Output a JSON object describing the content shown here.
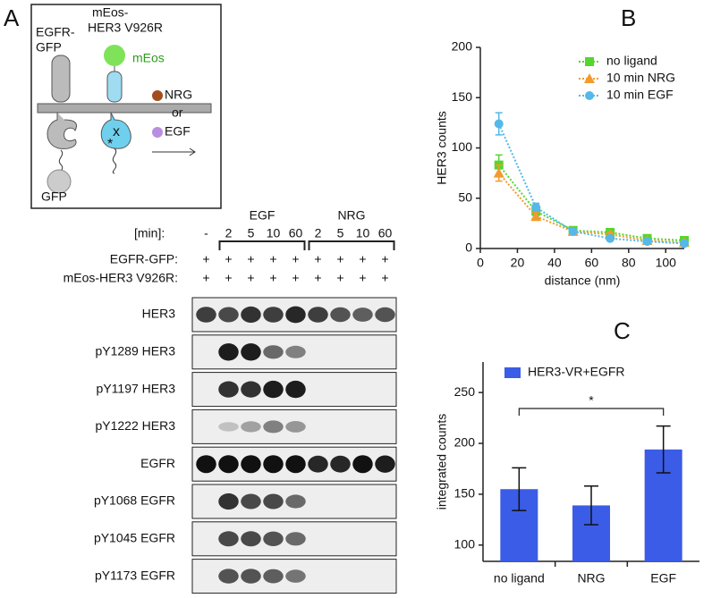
{
  "panel_labels": [
    "A",
    "B",
    "C"
  ],
  "diagram": {
    "egfr_label": [
      "EGFR-",
      "GFP"
    ],
    "her3_label": [
      "mEos-",
      "HER3 V926R"
    ],
    "meos_label": "mEos",
    "gfp_label": "GFP",
    "ligands": [
      "NRG",
      "or",
      "EGF"
    ]
  },
  "blot": {
    "min_label": "[min]:",
    "control": "-",
    "groups": [
      {
        "name": "EGF",
        "times": [
          2,
          5,
          10,
          60
        ]
      },
      {
        "name": "NRG",
        "times": [
          2,
          5,
          10,
          60
        ]
      }
    ],
    "conditions": [
      {
        "label": "EGFR-GFP:",
        "marks": [
          "+",
          "+",
          "+",
          "+",
          "+",
          "+",
          "+",
          "+",
          "+"
        ]
      },
      {
        "label": "mEos-HER3 V926R:",
        "marks": [
          "+",
          "+",
          "+",
          "+",
          "+",
          "+",
          "+",
          "+",
          "+"
        ]
      }
    ],
    "rows": [
      "HER3",
      "pY1289 HER3",
      "pY1197 HER3",
      "pY1222 HER3",
      "EGFR",
      "pY1068 EGFR",
      "pY1045 EGFR",
      "pY1173 EGFR"
    ]
  },
  "chart_data": [
    {
      "type": "line",
      "ylabel": "HER3 counts",
      "xlabel": "distance (nm)",
      "x": [
        10,
        30,
        50,
        70,
        90,
        110
      ],
      "series": [
        {
          "name": "no ligand",
          "color": "#55d62f",
          "marker": "square",
          "values": [
            83,
            37,
            18,
            16,
            10,
            8
          ],
          "errors": [
            10,
            4,
            2,
            2,
            1,
            1
          ]
        },
        {
          "name": "10 min NRG",
          "color": "#f39a2c",
          "marker": "triangle",
          "values": [
            75,
            32,
            17,
            14,
            8,
            6
          ],
          "errors": [
            8,
            4,
            2,
            2,
            1,
            1
          ]
        },
        {
          "name": "10 min EGF",
          "color": "#56b8e8",
          "marker": "circle",
          "values": [
            124,
            41,
            17,
            10,
            7,
            5
          ],
          "errors": [
            11,
            4,
            2,
            2,
            1,
            1
          ]
        }
      ],
      "xlim": [
        0,
        110
      ],
      "xticks": [
        0,
        20,
        40,
        60,
        80,
        100
      ],
      "ylim": [
        0,
        200
      ],
      "yticks": [
        0,
        50,
        100,
        150,
        200
      ],
      "legend": "upper right",
      "linestyle": "dotted"
    },
    {
      "type": "bar",
      "ylabel": "integrated counts",
      "categories": [
        "no ligand",
        "NRG",
        "EGF"
      ],
      "series": [
        {
          "name": "HER3-VR+EGFR",
          "color": "#3b5ce6",
          "values": [
            155,
            139,
            194
          ],
          "errors": [
            21,
            19,
            23
          ]
        }
      ],
      "ylim": [
        84,
        280
      ],
      "yticks": [
        100,
        150,
        200,
        250
      ],
      "legend": "upper left",
      "annotations": [
        {
          "text": "*",
          "between": [
            0,
            2
          ]
        }
      ]
    }
  ]
}
